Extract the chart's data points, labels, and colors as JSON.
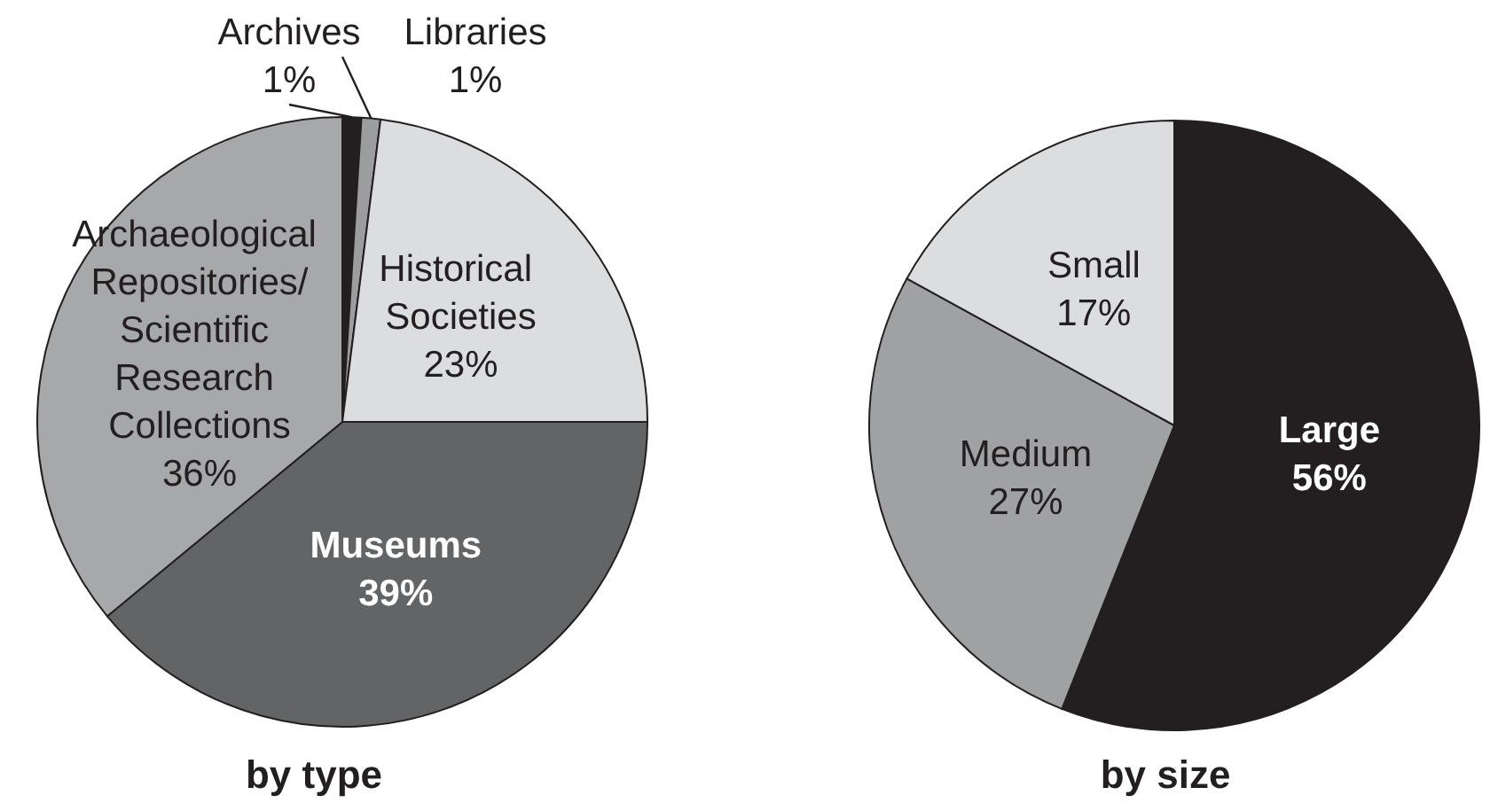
{
  "chart_data": [
    {
      "type": "pie",
      "title": "by type",
      "categories": [
        "Archives",
        "Libraries",
        "Historical Societies",
        "Museums",
        "Archaeological Repositories/Scientific Research Collections"
      ],
      "values": [
        1,
        1,
        23,
        39,
        36
      ],
      "value_labels": [
        "1%",
        "1%",
        "23%",
        "39%",
        "36%"
      ],
      "colors": [
        "#231f20",
        "#9c9d9f",
        "#dcdddf",
        "#636466",
        "#a7a8aa"
      ]
    },
    {
      "type": "pie",
      "title": "by size",
      "categories": [
        "Large",
        "Medium",
        "Small"
      ],
      "values": [
        56,
        27,
        17
      ],
      "value_labels": [
        "56%",
        "27%",
        "17%"
      ],
      "colors": [
        "#231f20",
        "#a0a1a3",
        "#dcdddf"
      ]
    }
  ]
}
